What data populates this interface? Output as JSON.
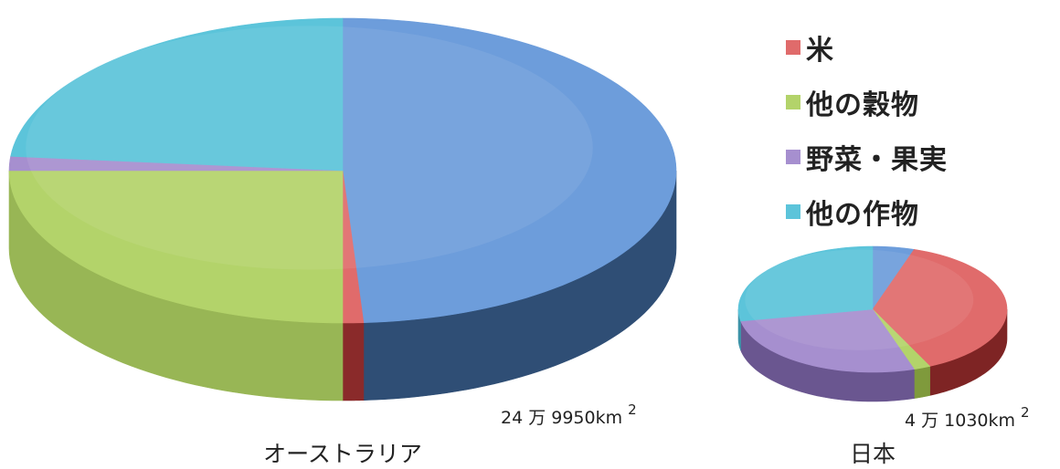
{
  "chart_data": {
    "type": "pie",
    "legend": {
      "placement": "right",
      "items": [
        {
          "name": "米",
          "color": "#e06b6b"
        },
        {
          "name": "他の穀物",
          "color": "#b3d36a"
        },
        {
          "name": "野菜・果実",
          "color": "#a68fcf"
        },
        {
          "name": "他の作物",
          "color": "#5cc4da"
        }
      ]
    },
    "charts": [
      {
        "label": "オーストラリア",
        "area": "24 万 9950km",
        "area_sup": "2",
        "slices": [
          {
            "value": 49,
            "color": "#6d9ddb",
            "side_color": "#2f4e75"
          },
          {
            "name": "米",
            "value": 1,
            "color": "#e06b6b",
            "side_color": "#8a2a2a"
          },
          {
            "name": "他の穀物",
            "value": 25,
            "color": "#b3d36a",
            "side_color": "#98b655"
          },
          {
            "name": "野菜・果実",
            "value": 1.5,
            "color": "#a68fcf",
            "side_color": "#7b66a0"
          },
          {
            "name": "他の作物",
            "value": 23.5,
            "color": "#5cc4da",
            "side_color": "#3d93a8"
          }
        ]
      },
      {
        "label": "日本",
        "area": "4 万 1030km",
        "area_sup": "2",
        "slices": [
          {
            "value": 5,
            "color": "#6d9ddb",
            "side_color": "#2f4e75"
          },
          {
            "name": "米",
            "value": 38,
            "color": "#e06b6b",
            "side_color": "#7e2424"
          },
          {
            "name": "他の穀物",
            "value": 2,
            "color": "#b3d36a",
            "side_color": "#7f9a3c"
          },
          {
            "name": "野菜・果実",
            "value": 27,
            "color": "#a68fcf",
            "side_color": "#6a5690"
          },
          {
            "name": "他の作物",
            "value": 28,
            "color": "#5cc4da",
            "side_color": "#3d93a8"
          }
        ]
      }
    ]
  }
}
